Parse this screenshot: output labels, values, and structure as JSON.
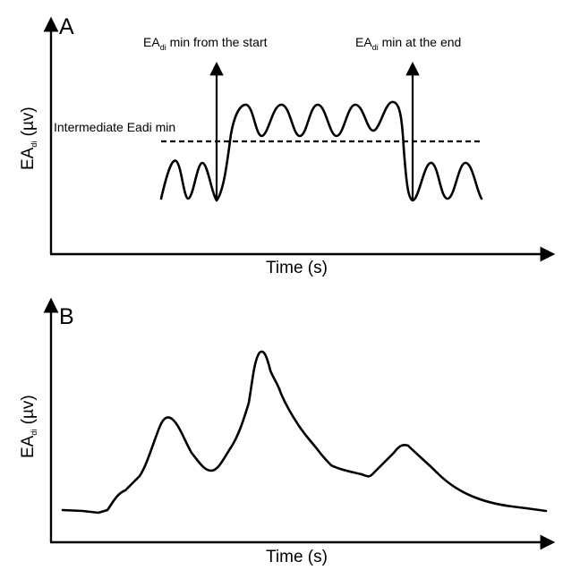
{
  "panel_a": {
    "letter": "A",
    "y_label_main": "EA",
    "y_label_sub": "di",
    "y_label_unit": " (µv)",
    "x_label": "Time (s)",
    "annotation_start": {
      "main": "EA",
      "sub": "di",
      "rest": " min from the start"
    },
    "annotation_end": {
      "main": "EA",
      "sub": "di",
      "rest": " min at the end"
    },
    "annotation_intermediate": "Intermediate Eadi min"
  },
  "panel_b": {
    "letter": "B",
    "y_label_main": "EA",
    "y_label_sub": "di",
    "y_label_unit": " (µv)",
    "x_label": "Time (s)"
  }
}
